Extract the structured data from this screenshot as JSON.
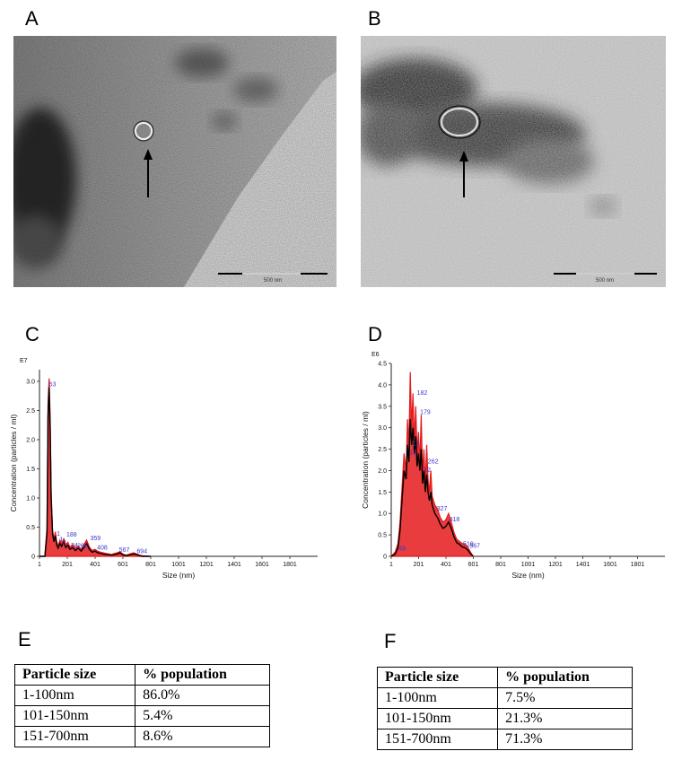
{
  "panels": {
    "A": {
      "letter": "A",
      "scale_label": "500 nm"
    },
    "B": {
      "letter": "B",
      "scale_label": "500 nm"
    },
    "C": {
      "letter": "C"
    },
    "D": {
      "letter": "D"
    },
    "E": {
      "letter": "E"
    },
    "F": {
      "letter": "F"
    }
  },
  "chart_data": [
    {
      "type": "line",
      "panel": "C",
      "exponent_label": "E7",
      "xlabel": "Size (nm)",
      "ylabel": "Concentration (particles / ml)",
      "xlim": [
        1,
        2001
      ],
      "ylim": [
        0,
        3.2
      ],
      "xticks": [
        "1",
        "201",
        "401",
        "601",
        "801",
        "1001",
        "1201",
        "1401",
        "1601",
        "1801"
      ],
      "yticks": [
        "0",
        "0.5",
        "1.0",
        "1.5",
        "2.0",
        "2.5",
        "3.0"
      ],
      "series": [
        {
          "color": "#e41a1c",
          "x": [
            1,
            40,
            55,
            62,
            70,
            78,
            85,
            95,
            105,
            115,
            125,
            135,
            148,
            160,
            175,
            190,
            205,
            220,
            240,
            260,
            280,
            300,
            320,
            340,
            360,
            380,
            400,
            420,
            440,
            460,
            480,
            500,
            520,
            540,
            560,
            580,
            600,
            620,
            640,
            660,
            680,
            700,
            720,
            740,
            800
          ],
          "y": [
            0,
            0,
            0.5,
            2.6,
            3.05,
            2.4,
            1.1,
            0.45,
            0.3,
            0.42,
            0.25,
            0.18,
            0.28,
            0.22,
            0.3,
            0.2,
            0.24,
            0.16,
            0.2,
            0.14,
            0.18,
            0.12,
            0.2,
            0.28,
            0.16,
            0.1,
            0.12,
            0.09,
            0.07,
            0.06,
            0.05,
            0.04,
            0.03,
            0.05,
            0.06,
            0.08,
            0.04,
            0.02,
            0.03,
            0.05,
            0.06,
            0.04,
            0.02,
            0.01,
            0
          ]
        },
        {
          "color": "#000000",
          "x": [
            1,
            40,
            55,
            62,
            70,
            78,
            85,
            95,
            105,
            115,
            125,
            135,
            148,
            160,
            175,
            190,
            205,
            220,
            240,
            260,
            280,
            300,
            320,
            340,
            360,
            380,
            400,
            420,
            440,
            460,
            480,
            500,
            520,
            540,
            560,
            580,
            600,
            620,
            640,
            660,
            680,
            700,
            720,
            740,
            800
          ],
          "y": [
            0,
            0,
            0.4,
            2.4,
            2.9,
            2.2,
            1.0,
            0.38,
            0.25,
            0.35,
            0.2,
            0.14,
            0.22,
            0.17,
            0.24,
            0.15,
            0.19,
            0.12,
            0.15,
            0.1,
            0.14,
            0.09,
            0.15,
            0.22,
            0.12,
            0.07,
            0.09,
            0.06,
            0.05,
            0.04,
            0.03,
            0.03,
            0.02,
            0.03,
            0.04,
            0.06,
            0.03,
            0.01,
            0.02,
            0.03,
            0.04,
            0.03,
            0.01,
            0.0,
            0
          ]
        }
      ],
      "peak_labels": [
        {
          "text": "63",
          "x": 63,
          "y": 2.9
        },
        {
          "text": "1",
          "x": 118,
          "y": 0.34
        },
        {
          "text": "188",
          "x": 188,
          "y": 0.32
        },
        {
          "text": "1",
          "x": 140,
          "y": 0.24
        },
        {
          "text": "2",
          "x": 160,
          "y": 0.19
        },
        {
          "text": "24",
          "x": 220,
          "y": 0.14
        },
        {
          "text": "266",
          "x": 266,
          "y": 0.13
        },
        {
          "text": "359",
          "x": 359,
          "y": 0.26
        },
        {
          "text": "408",
          "x": 408,
          "y": 0.1
        },
        {
          "text": "567",
          "x": 567,
          "y": 0.06
        },
        {
          "text": "694",
          "x": 694,
          "y": 0.04
        }
      ]
    },
    {
      "type": "line",
      "panel": "D",
      "exponent_label": "E6",
      "xlabel": "Size (nm)",
      "ylabel": "Concentration (particles / ml)",
      "xlim": [
        1,
        2001
      ],
      "ylim": [
        0,
        4.5
      ],
      "xticks": [
        "1",
        "201",
        "401",
        "601",
        "801",
        "1001",
        "1201",
        "1401",
        "1601",
        "1801"
      ],
      "yticks": [
        "0",
        "0.5",
        "1.0",
        "1.5",
        "2.0",
        "2.5",
        "3.0",
        "3.5",
        "4.0",
        "4.5"
      ],
      "series": [
        {
          "color": "#e41a1c",
          "x": [
            1,
            30,
            50,
            65,
            80,
            95,
            110,
            120,
            130,
            140,
            150,
            160,
            170,
            180,
            190,
            200,
            210,
            220,
            230,
            240,
            250,
            260,
            270,
            280,
            290,
            300,
            320,
            340,
            360,
            380,
            400,
            420,
            440,
            460,
            480,
            500,
            520,
            540,
            560,
            580,
            600
          ],
          "y": [
            0,
            0.1,
            0.3,
            0.8,
            1.6,
            2.4,
            2.0,
            3.2,
            2.6,
            4.3,
            3.0,
            3.8,
            2.7,
            3.5,
            2.4,
            2.9,
            2.2,
            3.3,
            1.9,
            2.5,
            1.7,
            2.6,
            1.8,
            1.5,
            2.0,
            1.4,
            1.2,
            1.1,
            0.9,
            0.8,
            0.85,
            1.0,
            0.8,
            0.55,
            0.4,
            0.35,
            0.3,
            0.28,
            0.22,
            0.1,
            0
          ]
        },
        {
          "color": "#000000",
          "x": [
            1,
            30,
            50,
            65,
            80,
            95,
            110,
            120,
            130,
            140,
            150,
            160,
            170,
            180,
            190,
            200,
            210,
            220,
            230,
            240,
            250,
            260,
            270,
            280,
            290,
            300,
            320,
            340,
            360,
            380,
            400,
            420,
            440,
            460,
            480,
            500,
            520,
            540,
            560,
            580,
            600
          ],
          "y": [
            0,
            0.05,
            0.2,
            0.6,
            1.3,
            2.0,
            1.8,
            2.6,
            2.2,
            3.2,
            2.6,
            3.0,
            2.4,
            2.8,
            2.1,
            2.4,
            2.0,
            2.5,
            1.7,
            2.0,
            1.5,
            1.9,
            1.5,
            1.3,
            1.5,
            1.2,
            1.0,
            0.9,
            0.75,
            0.65,
            0.7,
            0.8,
            0.65,
            0.45,
            0.32,
            0.28,
            0.22,
            0.2,
            0.15,
            0.06,
            0
          ]
        }
      ],
      "peak_labels": [
        {
          "text": "182",
          "x": 182,
          "y": 3.75
        },
        {
          "text": "179",
          "x": 205,
          "y": 3.3
        },
        {
          "text": "13",
          "x": 150,
          "y": 2.55
        },
        {
          "text": "12",
          "x": 130,
          "y": 2.35
        },
        {
          "text": "262",
          "x": 262,
          "y": 2.15
        },
        {
          "text": "22",
          "x": 232,
          "y": 1.95
        },
        {
          "text": "327",
          "x": 327,
          "y": 1.05
        },
        {
          "text": "418",
          "x": 418,
          "y": 0.8
        },
        {
          "text": "519",
          "x": 519,
          "y": 0.22
        },
        {
          "text": "567",
          "x": 567,
          "y": 0.18
        },
        {
          "text": "49",
          "x": 49,
          "y": 0.12
        }
      ]
    }
  ],
  "tables": {
    "E": {
      "headers": [
        "Particle size",
        "% population"
      ],
      "rows": [
        [
          "1-100nm",
          "86.0%"
        ],
        [
          "101-150nm",
          "5.4%"
        ],
        [
          "151-700nm",
          "8.6%"
        ]
      ]
    },
    "F": {
      "headers": [
        "Particle size",
        "% population"
      ],
      "rows": [
        [
          "1-100nm",
          "7.5%"
        ],
        [
          "101-150nm",
          "21.3%"
        ],
        [
          "151-700nm",
          "71.3%"
        ]
      ]
    }
  }
}
